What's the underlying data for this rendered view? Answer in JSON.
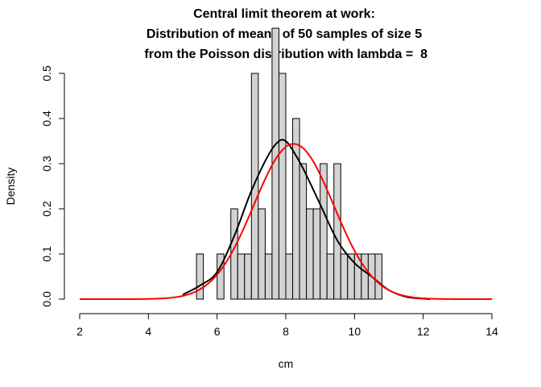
{
  "chart_data": {
    "type": "histogram",
    "title_lines": [
      "Central limit theorem at work:",
      "Distribution of means of  50  samples of size  5",
      " from the Poisson distribution with lambda =  8"
    ],
    "xlabel": "cm",
    "ylabel": "Density",
    "xlim": [
      2,
      14
    ],
    "ylim": [
      0,
      0.5
    ],
    "x_ticks": [
      2,
      4,
      6,
      8,
      10,
      12,
      14
    ],
    "y_ticks": [
      0.0,
      0.1,
      0.2,
      0.3,
      0.4,
      0.5
    ],
    "x_tick_labels": [
      "2",
      "4",
      "6",
      "8",
      "10",
      "12",
      "14"
    ],
    "y_tick_labels": [
      "0.0",
      "0.1",
      "0.2",
      "0.3",
      "0.4",
      "0.5"
    ],
    "bin_width": 0.2,
    "bins": [
      {
        "x0": 5.4,
        "x1": 5.6,
        "density": 0.1
      },
      {
        "x0": 5.6,
        "x1": 5.8,
        "density": 0.0
      },
      {
        "x0": 5.8,
        "x1": 6.0,
        "density": 0.0
      },
      {
        "x0": 6.0,
        "x1": 6.2,
        "density": 0.1
      },
      {
        "x0": 6.2,
        "x1": 6.4,
        "density": 0.0
      },
      {
        "x0": 6.4,
        "x1": 6.6,
        "density": 0.2
      },
      {
        "x0": 6.6,
        "x1": 6.8,
        "density": 0.1
      },
      {
        "x0": 6.8,
        "x1": 7.0,
        "density": 0.1
      },
      {
        "x0": 7.0,
        "x1": 7.2,
        "density": 0.5
      },
      {
        "x0": 7.2,
        "x1": 7.4,
        "density": 0.2
      },
      {
        "x0": 7.4,
        "x1": 7.6,
        "density": 0.1
      },
      {
        "x0": 7.6,
        "x1": 7.8,
        "density": 0.6
      },
      {
        "x0": 7.8,
        "x1": 8.0,
        "density": 0.5
      },
      {
        "x0": 8.0,
        "x1": 8.2,
        "density": 0.1
      },
      {
        "x0": 8.2,
        "x1": 8.4,
        "density": 0.4
      },
      {
        "x0": 8.4,
        "x1": 8.6,
        "density": 0.3
      },
      {
        "x0": 8.6,
        "x1": 8.8,
        "density": 0.2
      },
      {
        "x0": 8.8,
        "x1": 9.0,
        "density": 0.2
      },
      {
        "x0": 9.0,
        "x1": 9.2,
        "density": 0.3
      },
      {
        "x0": 9.2,
        "x1": 9.4,
        "density": 0.1
      },
      {
        "x0": 9.4,
        "x1": 9.6,
        "density": 0.3
      },
      {
        "x0": 9.6,
        "x1": 9.8,
        "density": 0.1
      },
      {
        "x0": 9.8,
        "x1": 10.0,
        "density": 0.1
      },
      {
        "x0": 10.0,
        "x1": 10.2,
        "density": 0.1
      },
      {
        "x0": 10.2,
        "x1": 10.4,
        "density": 0.1
      },
      {
        "x0": 10.4,
        "x1": 10.6,
        "density": 0.1
      },
      {
        "x0": 10.6,
        "x1": 10.8,
        "density": 0.1
      }
    ],
    "bar_fill": "#d3d3d3",
    "bar_stroke": "#000000",
    "series": [
      {
        "kind": "kernel-density",
        "color": "#000000",
        "x": [
          5.0,
          5.5,
          6.0,
          6.5,
          7.0,
          7.5,
          7.8,
          8.0,
          8.2,
          8.5,
          9.0,
          9.5,
          10.0,
          10.5,
          11.0,
          11.5,
          12.0,
          12.2
        ],
        "y": [
          0.01,
          0.03,
          0.06,
          0.14,
          0.24,
          0.32,
          0.35,
          0.35,
          0.33,
          0.29,
          0.21,
          0.13,
          0.08,
          0.05,
          0.02,
          0.005,
          0.001,
          0.0
        ]
      },
      {
        "kind": "normal-density",
        "color": "#ff0000",
        "mean": 8.23,
        "sd": 1.16
      }
    ]
  }
}
